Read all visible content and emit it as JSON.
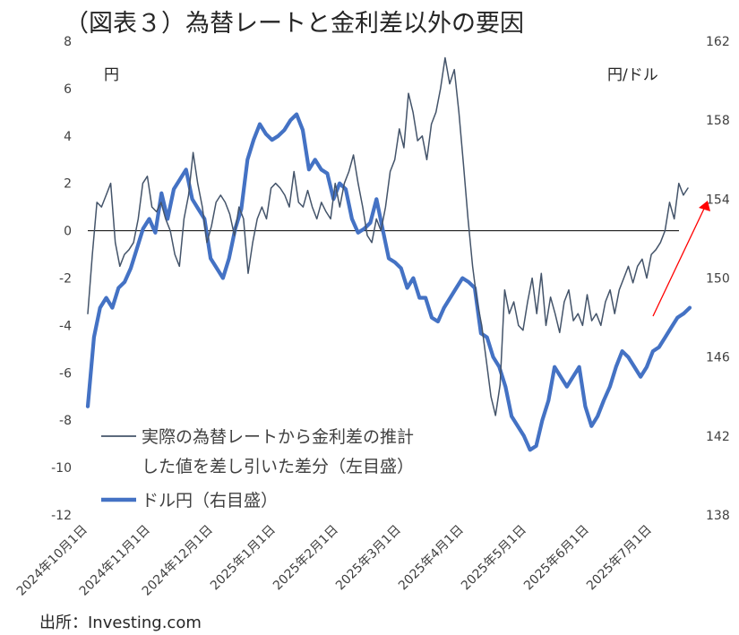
{
  "title": "（図表３）為替レートと金利差以外の要因",
  "source": "出所：Investing.com",
  "colors": {
    "spread": "#44546a",
    "usdjpy": "#4472c4",
    "arrow": "#ff0000",
    "zero": "#000000"
  },
  "chart_data": {
    "type": "line",
    "left_axis": {
      "unit_label": "円",
      "ylim": [
        -12,
        8
      ],
      "ticks": [
        "8",
        "6",
        "4",
        "2",
        "0",
        "-2",
        "-4",
        "-6",
        "-8",
        "-10",
        "-12"
      ]
    },
    "right_axis": {
      "unit_label": "円/ドル",
      "ylim": [
        138,
        162
      ],
      "ticks": [
        "162",
        "158",
        "154",
        "150",
        "146",
        "142",
        "138"
      ]
    },
    "x_ticks": [
      "2024年10月1日",
      "2024年11月1日",
      "2024年12月1日",
      "2025年1月1日",
      "2025年2月1日",
      "2025年3月1日",
      "2025年4月1日",
      "2025年5月1日",
      "2025年6月1日",
      "2025年7月1日"
    ],
    "legend": [
      {
        "name": "実際の為替レートから金利差の推計",
        "name_line2": "した値を差し引いた差分（左目盛）"
      },
      {
        "name": "ドル円（右目盛）"
      }
    ],
    "series": [
      {
        "name": "spread",
        "axis": "left",
        "values": [
          -3.5,
          -1.0,
          1.2,
          1.0,
          1.5,
          2.0,
          -0.5,
          -1.5,
          -1.0,
          -0.8,
          -0.5,
          0.5,
          2.0,
          2.3,
          1.0,
          0.8,
          1.2,
          0.5,
          0.0,
          -1.0,
          -1.5,
          0.5,
          1.5,
          3.3,
          2.0,
          1.0,
          -0.5,
          0.2,
          1.2,
          1.5,
          1.2,
          0.7,
          -0.2,
          1.0,
          0.5,
          -1.8,
          -0.5,
          0.5,
          1.0,
          0.5,
          1.8,
          2.0,
          1.8,
          1.5,
          1.0,
          2.5,
          1.2,
          1.0,
          1.7,
          1.0,
          0.5,
          1.2,
          0.8,
          0.5,
          2.0,
          1.0,
          2.0,
          2.5,
          3.2,
          2.0,
          1.0,
          -0.2,
          -0.5,
          0.5,
          0.0,
          1.0,
          2.5,
          3.0,
          4.3,
          3.5,
          5.8,
          5.0,
          3.8,
          4.0,
          3.0,
          4.5,
          5.0,
          6.0,
          7.3,
          6.2,
          6.8,
          5.0,
          2.8,
          0.5,
          -1.5,
          -3.0,
          -4.0,
          -5.5,
          -7.0,
          -7.8,
          -6.5,
          -2.5,
          -3.5,
          -3.0,
          -4.0,
          -4.2,
          -3.0,
          -2.0,
          -3.5,
          -1.8,
          -4.0,
          -2.8,
          -3.5,
          -4.3,
          -3.0,
          -2.5,
          -3.8,
          -3.5,
          -4.0,
          -2.7,
          -3.8,
          -3.5,
          -4.0,
          -3.0,
          -2.5,
          -3.5,
          -2.5,
          -2.0,
          -1.5,
          -2.2,
          -1.5,
          -1.2,
          -2.0,
          -1.0,
          -0.8,
          -0.5,
          0.0,
          1.2,
          0.5,
          2.0,
          1.5,
          1.8
        ]
      },
      {
        "name": "ドル円",
        "axis": "right",
        "values": [
          143.5,
          147.0,
          148.5,
          149.0,
          148.5,
          149.5,
          149.8,
          150.5,
          151.5,
          152.5,
          153.0,
          152.3,
          154.3,
          153.0,
          154.5,
          155.0,
          155.5,
          154.0,
          153.5,
          153.0,
          151.0,
          150.5,
          150.0,
          151.0,
          152.5,
          153.5,
          156.0,
          157.0,
          157.8,
          157.3,
          157.0,
          157.2,
          157.5,
          158.0,
          158.3,
          157.5,
          155.5,
          156.0,
          155.5,
          155.3,
          154.0,
          154.8,
          154.5,
          153.0,
          152.3,
          152.5,
          152.8,
          154.0,
          152.5,
          151.0,
          150.8,
          150.5,
          149.5,
          150.0,
          149.0,
          149.0,
          148.0,
          147.8,
          148.5,
          149.0,
          149.5,
          150.0,
          149.8,
          149.5,
          147.2,
          147.0,
          146.0,
          145.5,
          144.5,
          143.0,
          142.5,
          142.0,
          141.3,
          141.5,
          142.8,
          143.8,
          145.5,
          145.0,
          144.5,
          145.0,
          145.5,
          143.5,
          142.5,
          143.0,
          143.8,
          144.5,
          145.5,
          146.3,
          146.0,
          145.5,
          145.0,
          145.5,
          146.3,
          146.5,
          147.0,
          147.5,
          148.0,
          148.2,
          148.5
        ]
      }
    ]
  }
}
